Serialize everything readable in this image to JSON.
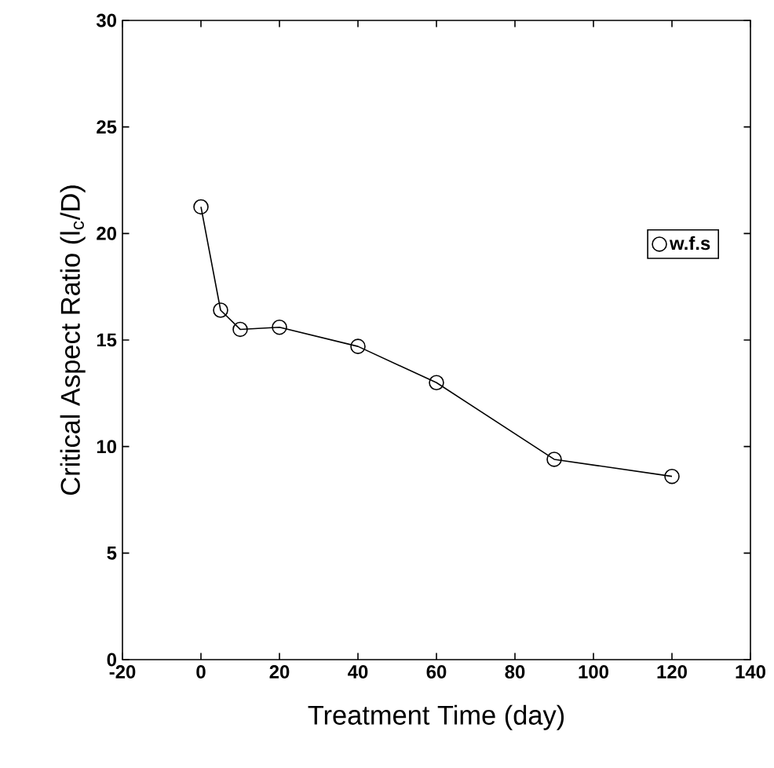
{
  "chart_data": {
    "type": "line",
    "xlabel": "Treatment Time (day)",
    "ylabel": "Critical Aspect Ratio (l$_{c}$/D)",
    "x": [
      0,
      5,
      10,
      20,
      40,
      60,
      90,
      120
    ],
    "series": [
      {
        "name": "w.f.s",
        "color": "#000000",
        "values": [
          21.25,
          16.4,
          15.5,
          15.6,
          14.7,
          13.0,
          9.4,
          8.6
        ]
      }
    ],
    "xlim": [
      -20,
      140
    ],
    "xticks": [
      -20,
      0,
      20,
      40,
      60,
      80,
      100,
      120,
      140
    ],
    "ylim": [
      0,
      30
    ],
    "yticks": [
      0,
      5,
      10,
      15,
      20,
      25,
      30
    ],
    "marker": "circle",
    "line_style": "solid",
    "legend": "right",
    "grid": false
  }
}
